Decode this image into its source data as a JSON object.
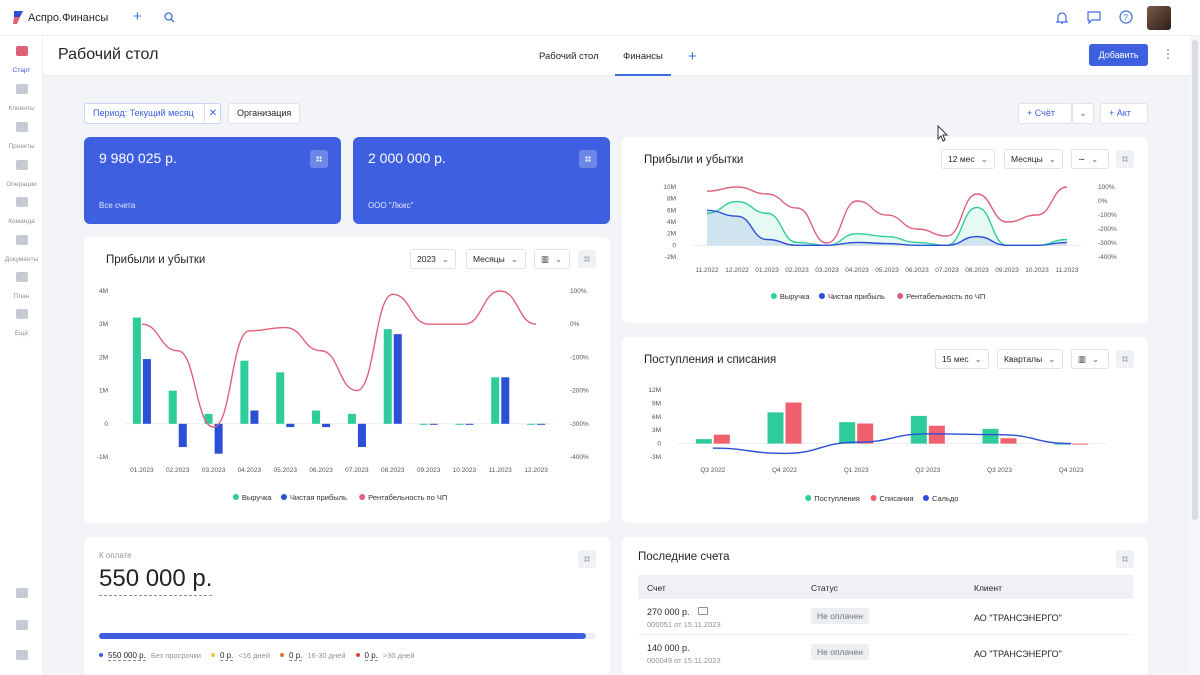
{
  "app": {
    "name": "Аспро.Финансы"
  },
  "sidebar": {
    "items": [
      {
        "label": "Старт"
      },
      {
        "label": "Клиенты"
      },
      {
        "label": "Проекты"
      },
      {
        "label": "Операции"
      },
      {
        "label": "Команда"
      },
      {
        "label": "Документы"
      },
      {
        "label": "План"
      },
      {
        "label": "Ещё"
      }
    ]
  },
  "page": {
    "title": "Рабочий стол",
    "tabs": [
      "Рабочий стол",
      "Финансы"
    ],
    "add_button": "Добавить"
  },
  "filters": {
    "period": "Период: Текущий месяц",
    "org": "Организация",
    "invoice_btn": "Счёт",
    "act_btn": "Акт"
  },
  "kpis": [
    {
      "value": "9 980 025 р.",
      "label": "Все счета"
    },
    {
      "value": "2 000 000 р.",
      "label": "ООО \"Люкс\""
    }
  ],
  "pl_small": {
    "title": "Прибыли и убытки",
    "sel1": "12 мес",
    "sel2": "Месяцы"
  },
  "pl_big": {
    "title": "Прибыли и убытки",
    "sel1": "2023",
    "sel2": "Месяцы"
  },
  "cash": {
    "title": "Поступления и списания",
    "sel1": "15 мес",
    "sel2": "Кварталы"
  },
  "payable": {
    "label": "К оплате",
    "value": "550 000 р.",
    "legend": [
      {
        "amount": "550 000 р.",
        "text": "Без просрочки",
        "color": "#3d5fe0"
      },
      {
        "amount": "0 р.",
        "text": "<16 дней",
        "color": "#e8c547"
      },
      {
        "amount": "0 р.",
        "text": "16-30 дней",
        "color": "#e0763d"
      },
      {
        "amount": "0 р.",
        "text": ">30 дней",
        "color": "#d9453b"
      }
    ]
  },
  "invoices": {
    "title": "Последние счета",
    "headers": [
      "Счет",
      "Статус",
      "Клиент"
    ],
    "rows": [
      {
        "amount": "270 000 р.",
        "meta": "000051 от 15.11.2023",
        "status": "Не оплачен",
        "client": "АО \"ТРАНСЭНЕРГО\""
      },
      {
        "amount": "140 000 р.",
        "meta": "000049 от 15.11.2023",
        "status": "Не оплачен",
        "client": "АО \"ТРАНСЭНЕРГО\""
      }
    ]
  },
  "chart_data": [
    {
      "type": "line",
      "title": "Прибыли и убытки",
      "x": [
        "11.2022",
        "12.2022",
        "01.2023",
        "02.2023",
        "03.2023",
        "04.2023",
        "05.2023",
        "06.2023",
        "07.2023",
        "08.2023",
        "09.2023",
        "10.2023",
        "11.2023"
      ],
      "y_ticks": [
        "10M",
        "8M",
        "6M",
        "4M",
        "2M",
        "0",
        "-2M"
      ],
      "y2_ticks": [
        "100%",
        "0%",
        "-100%",
        "-200%",
        "-300%",
        "-400%"
      ],
      "ylim": [
        -2,
        10
      ],
      "y2lim": [
        -400,
        100
      ],
      "series": [
        {
          "name": "Выручка",
          "color": "#2ecc9b",
          "values": [
            5.5,
            7.5,
            5.5,
            0.5,
            0,
            2,
            1.5,
            0.5,
            0,
            6.5,
            0,
            0,
            1
          ]
        },
        {
          "name": "Чистая прибыль",
          "color": "#2c4fd6",
          "values": [
            6,
            5,
            1,
            0,
            0,
            0.5,
            0.3,
            0,
            0,
            1.5,
            0,
            0,
            0.5
          ]
        },
        {
          "name": "Рентабельность по ЧП",
          "color": "#e0607a",
          "axis": "right",
          "values": [
            70,
            100,
            50,
            -50,
            -300,
            0,
            -100,
            -200,
            -250,
            50,
            -150,
            -100,
            100
          ]
        }
      ]
    },
    {
      "type": "bar",
      "title": "Прибыли и убытки",
      "categories": [
        "01.2023",
        "02.2023",
        "03.2023",
        "04.2023",
        "05.2023",
        "06.2023",
        "07.2023",
        "08.2023",
        "09.2023",
        "10.2023",
        "11.2023",
        "12.2023"
      ],
      "y_ticks": [
        "4M",
        "3M",
        "2M",
        "1M",
        "0",
        "-1M"
      ],
      "y2_ticks": [
        "100%",
        "0%",
        "-100%",
        "-200%",
        "-300%",
        "-400%"
      ],
      "ylim": [
        -1,
        4
      ],
      "y2lim": [
        -400,
        100
      ],
      "series": [
        {
          "name": "Выручка",
          "color": "#2ecc9b",
          "values": [
            3.2,
            1.0,
            0.3,
            1.9,
            1.55,
            0.4,
            0.3,
            2.85,
            0,
            0,
            1.4,
            0
          ]
        },
        {
          "name": "Чистая прибыль",
          "color": "#2c4fd6",
          "values": [
            1.95,
            -0.7,
            -0.9,
            0.4,
            -0.1,
            -0.1,
            -0.7,
            2.7,
            0,
            0,
            1.4,
            0
          ]
        },
        {
          "name": "Рентабельность по ЧП",
          "color": "#e0607a",
          "axis": "right",
          "line": true,
          "values": [
            0,
            -80,
            -310,
            -20,
            -10,
            -80,
            -200,
            90,
            0,
            0,
            100,
            0
          ]
        }
      ]
    },
    {
      "type": "bar",
      "title": "Поступления и списания",
      "categories": [
        "Q3 2022",
        "Q4 2022",
        "Q1 2023",
        "Q2 2023",
        "Q3 2023",
        "Q4 2023"
      ],
      "y_ticks": [
        "12M",
        "9M",
        "6M",
        "3M",
        "0",
        "-3M"
      ],
      "ylim": [
        -3,
        12
      ],
      "series": [
        {
          "name": "Поступления",
          "color": "#2ecc9b",
          "values": [
            1,
            7,
            4.8,
            6.2,
            3.3,
            0
          ]
        },
        {
          "name": "Списания",
          "color": "#f0606e",
          "values": [
            2,
            9.2,
            4.5,
            4,
            1.2,
            0
          ]
        },
        {
          "name": "Сальдо",
          "color": "#2c4fd6",
          "line": true,
          "values": [
            -1,
            -2.2,
            0.3,
            2.2,
            2,
            0
          ]
        }
      ]
    }
  ]
}
